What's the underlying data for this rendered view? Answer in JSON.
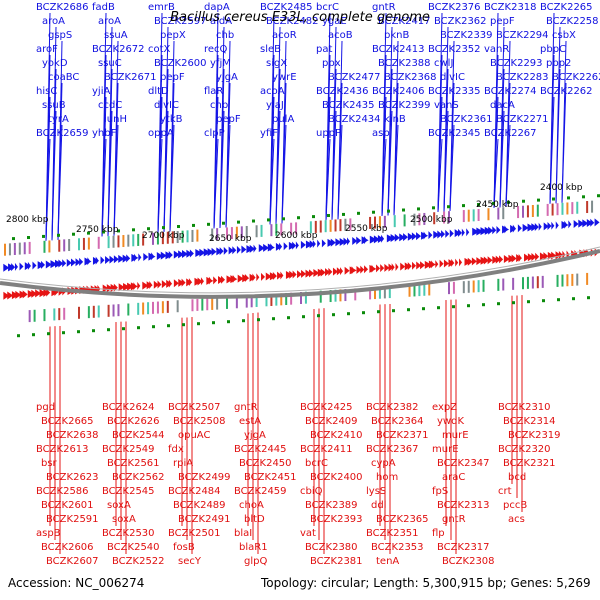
{
  "title": "Bacillus cereus E33L, complete genome",
  "footer": {
    "accession": "Accession: NC_006274",
    "summary": "Topology: circular; Length: 5,300,915 bp; Genes: 5,269"
  },
  "colors": {
    "forward": "#1414e6",
    "reverse": "#e61414",
    "backbone": "#808080",
    "tick": "#0a8a0a"
  },
  "scale_labels": [
    "2800 kbp",
    "2750 kbp",
    "2700 kbp",
    "2650 kbp",
    "2600 kbp",
    "2550 kbp",
    "2500 kbp",
    "2450 kbp",
    "2400 kbp"
  ],
  "top_genes": [
    "BCZK2686",
    "aroA",
    "gspS",
    "aroF",
    "yokD",
    "coaBC",
    "hisC",
    "ssuB",
    "tyrA",
    "BCZK2659",
    "fadB",
    "aroA",
    "ssuA",
    "BCZK2672",
    "ssuC",
    "BCZK2671",
    "yjiA",
    "ccdC",
    "iunH",
    "yhbF",
    "emrB",
    "BCZK2597",
    "pepX",
    "cotX",
    "BCZK2600",
    "pepF",
    "dltD",
    "divIC",
    "ytkB",
    "oppA",
    "dapA",
    "aldA",
    "chb",
    "recQ",
    "yfjM",
    "yjgA",
    "flaR",
    "chb",
    "pepF",
    "clpP",
    "BCZK2485",
    "BCZK2482",
    "acoR",
    "sleB",
    "sigX",
    "ywrE",
    "acoA",
    "ylaJ",
    "pulA",
    "yfiF",
    "bcrC",
    "ygaE",
    "acoB",
    "pat",
    "ppx",
    "BCZK2477",
    "BCZK2436",
    "BCZK2435",
    "BCZK2434",
    "uppP",
    "gntR",
    "BCZK2417",
    "pknB",
    "BCZK2413",
    "BCZK2388",
    "BCZK2368",
    "BCZK2406",
    "BCZK2399",
    "kinB",
    "asp",
    "BCZK2376",
    "BCZK2362",
    "BCZK2339",
    "BCZK2352",
    "cwlJ",
    "divIC",
    "BCZK2335",
    "vanS",
    "BCZK2361",
    "BCZK2345",
    "BCZK2318",
    "pepF",
    "BCZK2294",
    "vanR",
    "BCZK2293",
    "BCZK2283",
    "BCZK2274",
    "dacA",
    "BCZK2271",
    "BCZK2267",
    "BCZK2265",
    "BCZK2258",
    "csbX",
    "pbpC",
    "pbp2",
    "BCZK2262",
    "BCZK2262"
  ],
  "bottom_genes": [
    "pgd",
    "BCZK2665",
    "BCZK2638",
    "BCZK2613",
    "bsr",
    "BCZK2623",
    "BCZK2586",
    "BCZK2601",
    "BCZK2591",
    "aspB",
    "BCZK2606",
    "BCZK2607",
    "BCZK2624",
    "BCZK2626",
    "BCZK2544",
    "BCZK2549",
    "BCZK2561",
    "BCZK2562",
    "BCZK2545",
    "soxA",
    "soxA",
    "BCZK2530",
    "BCZK2540",
    "BCZK2522",
    "BCZK2507",
    "BCZK2508",
    "opuAC",
    "fdx",
    "rpiA",
    "BCZK2499",
    "BCZK2484",
    "BCZK2489",
    "BCZK2491",
    "BCZK2501",
    "fosB",
    "secY",
    "gntR",
    "estA",
    "yjgA",
    "BCZK2445",
    "BCZK2450",
    "BCZK2451",
    "BCZK2459",
    "choA",
    "bltD",
    "blaI",
    "blaR1",
    "glpQ",
    "BCZK2425",
    "BCZK2409",
    "BCZK2410",
    "BCZK2411",
    "bcrC",
    "BCZK2400",
    "cbiQ",
    "BCZK2389",
    "BCZK2393",
    "vat",
    "BCZK2380",
    "BCZK2381",
    "BCZK2382",
    "BCZK2364",
    "BCZK2371",
    "BCZK2367",
    "cypA",
    "hom",
    "lysS",
    "ddl",
    "BCZK2365",
    "BCZK2351",
    "BCZK2353",
    "tenA",
    "expZ",
    "ywdK",
    "murE",
    "murE",
    "BCZK2347",
    "araC",
    "fpS",
    "BCZK2313",
    "gntR",
    "flp",
    "BCZK2317",
    "BCZK2308",
    "BCZK2310",
    "BCZK2314",
    "BCZK2319",
    "BCZK2320",
    "BCZK2321",
    "bcd",
    "crt",
    "pccB",
    "acs"
  ]
}
